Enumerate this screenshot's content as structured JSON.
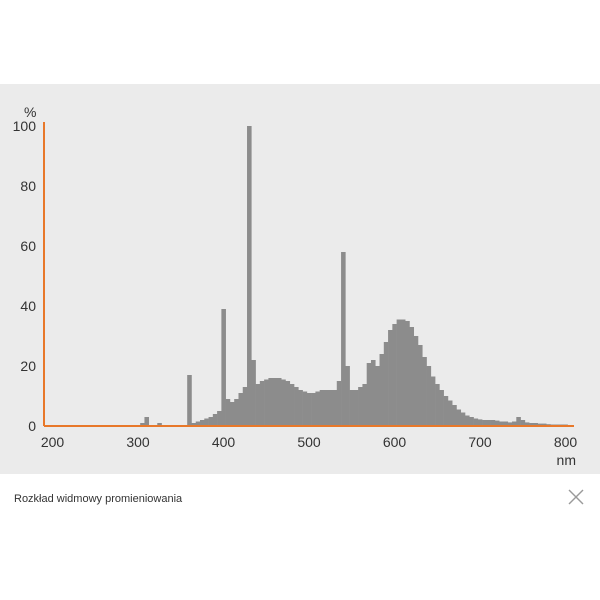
{
  "chart_data": {
    "type": "bar",
    "xlabel": "nm",
    "ylabel": "%",
    "xlim": [
      190,
      810
    ],
    "ylim": [
      0,
      100
    ],
    "x_ticks": [
      200,
      300,
      400,
      500,
      600,
      700,
      800
    ],
    "y_ticks": [
      0,
      20,
      40,
      60,
      80,
      100
    ],
    "bin_width_nm": 5,
    "grid": false,
    "legend": "none",
    "colors": {
      "bars": "#8c8c8c",
      "axes": "#e8782a",
      "background": "#ebebeb"
    },
    "x": [
      305,
      310,
      325,
      360,
      365,
      370,
      375,
      380,
      385,
      390,
      395,
      400,
      405,
      410,
      415,
      420,
      425,
      430,
      435,
      440,
      445,
      450,
      455,
      460,
      465,
      470,
      475,
      480,
      485,
      490,
      495,
      500,
      505,
      510,
      515,
      520,
      525,
      530,
      535,
      540,
      545,
      550,
      555,
      560,
      565,
      570,
      575,
      580,
      585,
      590,
      595,
      600,
      605,
      610,
      615,
      620,
      625,
      630,
      635,
      640,
      645,
      650,
      655,
      660,
      665,
      670,
      675,
      680,
      685,
      690,
      695,
      700,
      705,
      710,
      715,
      720,
      725,
      730,
      735,
      740,
      745,
      750,
      755,
      760,
      765,
      770,
      775,
      780,
      785,
      790,
      795,
      800
    ],
    "values": [
      1,
      3,
      1,
      17,
      1,
      1.5,
      2,
      2.5,
      3,
      4,
      5,
      39,
      9,
      8,
      9,
      11,
      13,
      100,
      22,
      14,
      15,
      15.5,
      16,
      16,
      16,
      15.5,
      15,
      14,
      13,
      12,
      11.5,
      11,
      11,
      11.5,
      12,
      12,
      12,
      12,
      15,
      58,
      20,
      12,
      12,
      13,
      14,
      21,
      22,
      20,
      24,
      28,
      32,
      34,
      35.5,
      35.5,
      35,
      33,
      30,
      27,
      23,
      20,
      16.5,
      14,
      12,
      10,
      8.5,
      7,
      5.5,
      4.5,
      3.5,
      3,
      2.5,
      2.2,
      2,
      2,
      2,
      1.8,
      1.5,
      1.5,
      1.2,
      1.5,
      3,
      2,
      1.2,
      1,
      1,
      0.8,
      0.8,
      0.6,
      0.5,
      0.5,
      0.5,
      0.5
    ]
  },
  "caption": "Rozkład widmowy promieniowania",
  "close_icon": "close-icon"
}
